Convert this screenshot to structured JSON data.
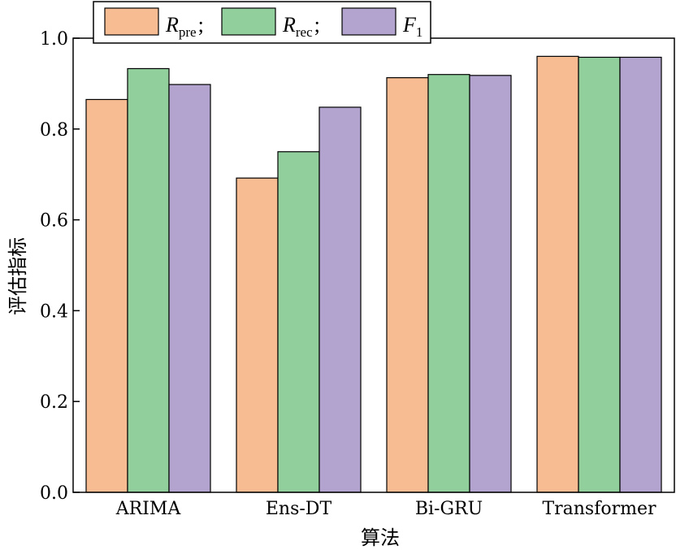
{
  "chart_data": {
    "type": "bar",
    "title": "",
    "xlabel": "算法",
    "ylabel": "评估指标",
    "ylim": [
      0,
      1.0
    ],
    "yticks": [
      "0.0",
      "0.2",
      "0.4",
      "0.6",
      "0.8",
      "1.0"
    ],
    "categories": [
      "ARIMA",
      "Ens-DT",
      "Bi-GRU",
      "Transformer"
    ],
    "legend_position": "top-left",
    "series": [
      {
        "name": "R",
        "sub": "pre",
        "sep": ";",
        "color": "#f7bc91",
        "values": [
          0.865,
          0.692,
          0.913,
          0.96
        ]
      },
      {
        "name": "R",
        "sub": "rec",
        "sep": ";",
        "color": "#91cf9d",
        "values": [
          0.933,
          0.75,
          0.92,
          0.958
        ]
      },
      {
        "name": "F",
        "sub": "1",
        "sep": "",
        "color": "#b2a4cf",
        "values": [
          0.898,
          0.848,
          0.918,
          0.958
        ]
      }
    ]
  }
}
